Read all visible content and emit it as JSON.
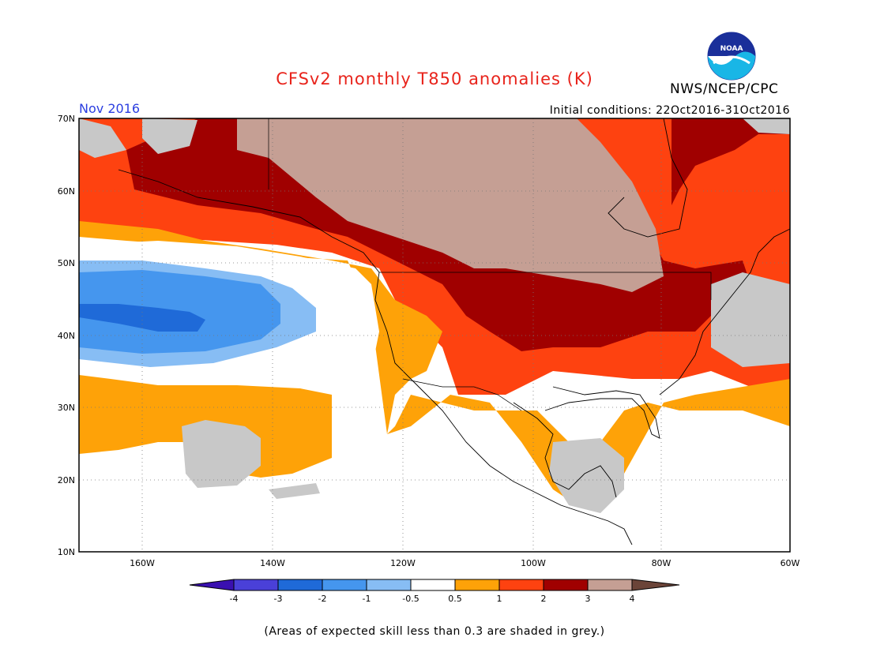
{
  "header": {
    "title": "CFSv2 monthly T850 anomalies (K)",
    "month": "Nov 2016",
    "initial_conditions": "Initial conditions: 22Oct2016-31Oct2016",
    "agency": "NWS/NCEP/CPC",
    "logo_text": "NOAA"
  },
  "map": {
    "lat_labels": [
      "70N",
      "60N",
      "50N",
      "40N",
      "30N",
      "20N",
      "10N"
    ],
    "lon_labels": [
      "160W",
      "140W",
      "120W",
      "100W",
      "80W",
      "60W"
    ]
  },
  "legend": {
    "tick_labels": [
      "-4",
      "-3",
      "-2",
      "-1",
      "-0.5",
      "0.5",
      "1",
      "2",
      "3",
      "4"
    ],
    "colors": [
      "#3a10b0",
      "#4a40d8",
      "#1f6ad8",
      "#4596ee",
      "#87bdf4",
      "#ffffff",
      "#fea208",
      "#fe4210",
      "#a00000",
      "#c59f94",
      "#6b4438"
    ]
  },
  "footnote": "(Areas of expected skill less than 0.3 are shaded in grey.)",
  "colors": {
    "title": "#e8231b",
    "month": "#2b3ee0",
    "skill_grey": "#c8c8c8"
  }
}
